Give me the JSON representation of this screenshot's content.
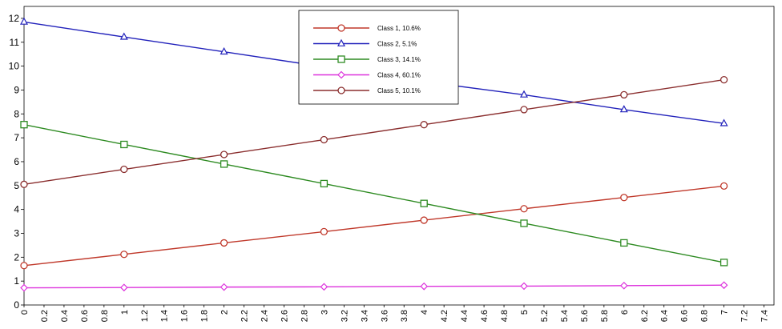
{
  "chart_data": {
    "type": "line",
    "title": "",
    "xlabel": "",
    "ylabel": "",
    "xlim": [
      0,
      7.5
    ],
    "ylim": [
      0,
      12.5
    ],
    "grid": false,
    "legend_position": "top-center",
    "x": [
      0,
      1,
      2,
      3,
      4,
      5,
      6,
      7
    ],
    "x_tick_labels": [
      "0",
      "0.2",
      "0.4",
      "0.6",
      "0.8",
      "1",
      "1.2",
      "1.4",
      "1.6",
      "1.8",
      "2",
      "2.2",
      "2.4",
      "2.6",
      "2.8",
      "3",
      "3.2",
      "3.4",
      "3.6",
      "3.8",
      "4",
      "4.2",
      "4.4",
      "4.6",
      "4.8",
      "5",
      "5.2",
      "5.4",
      "5.6",
      "5.8",
      "6",
      "6.2",
      "6.4",
      "6.6",
      "6.8",
      "7",
      "7.2",
      "7.4"
    ],
    "y_tick_labels": [
      "0",
      "1",
      "2",
      "3",
      "4",
      "5",
      "6",
      "7",
      "8",
      "9",
      "10",
      "11",
      "12"
    ],
    "series": [
      {
        "name": "Class 1, 10.6%",
        "color": "#c0392b",
        "marker": "circle",
        "values": [
          1.65,
          2.12,
          2.6,
          3.07,
          3.55,
          4.03,
          4.5,
          4.98
        ]
      },
      {
        "name": "Class 2, 5.1%",
        "color": "#2222bb",
        "marker": "triangle",
        "values": [
          11.85,
          11.22,
          10.6,
          9.97,
          9.35,
          8.8,
          8.18,
          7.6
        ]
      },
      {
        "name": "Class 3, 14.1%",
        "color": "#2e8b22",
        "marker": "square",
        "values": [
          7.55,
          6.72,
          5.9,
          5.08,
          4.25,
          3.42,
          2.6,
          1.78
        ]
      },
      {
        "name": "Class 4, 60.1%",
        "color": "#dd33dd",
        "marker": "diamond",
        "values": [
          0.72,
          0.73,
          0.75,
          0.76,
          0.78,
          0.79,
          0.81,
          0.83
        ]
      },
      {
        "name": "Class 5, 10.1%",
        "color": "#8b2f2f",
        "marker": "circle",
        "values": [
          5.05,
          5.68,
          6.3,
          6.92,
          7.55,
          8.18,
          8.8,
          9.43
        ]
      }
    ]
  }
}
